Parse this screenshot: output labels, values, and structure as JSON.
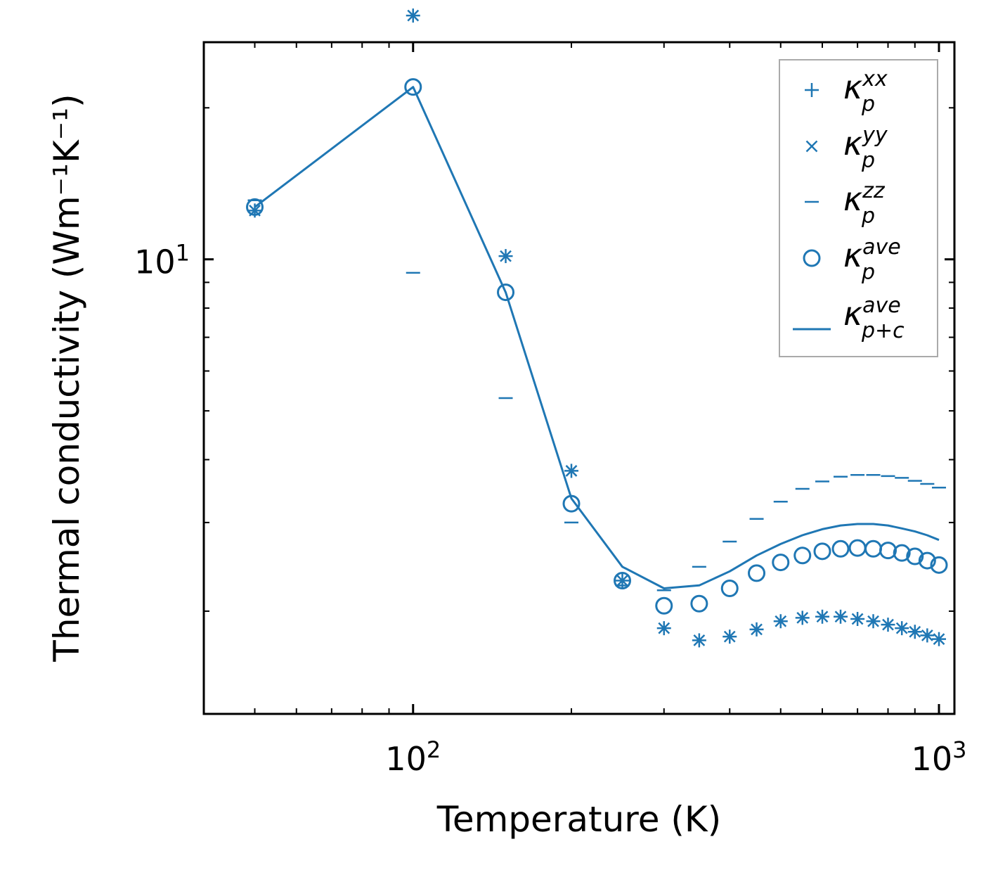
{
  "chart_data": {
    "type": "scatter",
    "xlabel": "Temperature (K)",
    "ylabel": "Thermal conductivity (Wm⁻¹K⁻¹)",
    "xscale": "log",
    "yscale": "log",
    "xlim": [
      40,
      1070
    ],
    "ylim": [
      1.25,
      27
    ],
    "x_ticks": [
      {
        "value": 100,
        "base": "10",
        "exp": "2"
      },
      {
        "value": 1000,
        "base": "10",
        "exp": "3"
      }
    ],
    "y_ticks": [
      {
        "value": 10,
        "base": "10",
        "exp": "1"
      }
    ],
    "color": "#1f77b4",
    "legend_position": "upper right",
    "x": [
      50,
      100,
      150,
      200,
      250,
      300,
      350,
      400,
      450,
      500,
      550,
      600,
      650,
      700,
      750,
      800,
      850,
      900,
      950,
      1000
    ],
    "series": [
      {
        "name": "kxx",
        "label_base": "κ",
        "label_sub": "p",
        "label_sup": "xx",
        "marker": "plus",
        "values": [
          12.5,
          30.5,
          10.15,
          3.8,
          2.3,
          1.85,
          1.75,
          1.78,
          1.84,
          1.91,
          1.94,
          1.95,
          1.95,
          1.93,
          1.91,
          1.88,
          1.85,
          1.82,
          1.79,
          1.76
        ]
      },
      {
        "name": "kyy",
        "label_base": "κ",
        "label_sub": "p",
        "label_sup": "yy",
        "marker": "x",
        "values": [
          12.5,
          30.5,
          10.15,
          3.8,
          2.3,
          1.85,
          1.75,
          1.78,
          1.84,
          1.91,
          1.94,
          1.95,
          1.95,
          1.93,
          1.91,
          1.88,
          1.85,
          1.82,
          1.79,
          1.76
        ]
      },
      {
        "name": "kzz",
        "label_base": "κ",
        "label_sub": "p",
        "label_sup": "zz",
        "marker": "hline",
        "values": [
          13.1,
          9.4,
          5.3,
          3.0,
          2.25,
          2.2,
          2.45,
          2.75,
          3.05,
          3.3,
          3.5,
          3.62,
          3.7,
          3.73,
          3.73,
          3.71,
          3.68,
          3.63,
          3.58,
          3.52
        ]
      },
      {
        "name": "kave",
        "label_base": "κ",
        "label_sub": "p",
        "label_sup": "ave",
        "marker": "circle",
        "values": [
          12.7,
          22.0,
          8.6,
          3.27,
          2.3,
          2.05,
          2.07,
          2.22,
          2.38,
          2.5,
          2.58,
          2.63,
          2.66,
          2.67,
          2.66,
          2.64,
          2.61,
          2.57,
          2.52,
          2.47
        ]
      },
      {
        "name": "kave_pc",
        "label_base": "κ",
        "label_sub": "p+c",
        "label_sup": "ave",
        "marker": "line",
        "values": [
          12.7,
          22.0,
          8.6,
          3.35,
          2.45,
          2.22,
          2.25,
          2.4,
          2.58,
          2.72,
          2.83,
          2.91,
          2.96,
          2.98,
          2.98,
          2.96,
          2.92,
          2.88,
          2.83,
          2.77
        ]
      }
    ]
  }
}
